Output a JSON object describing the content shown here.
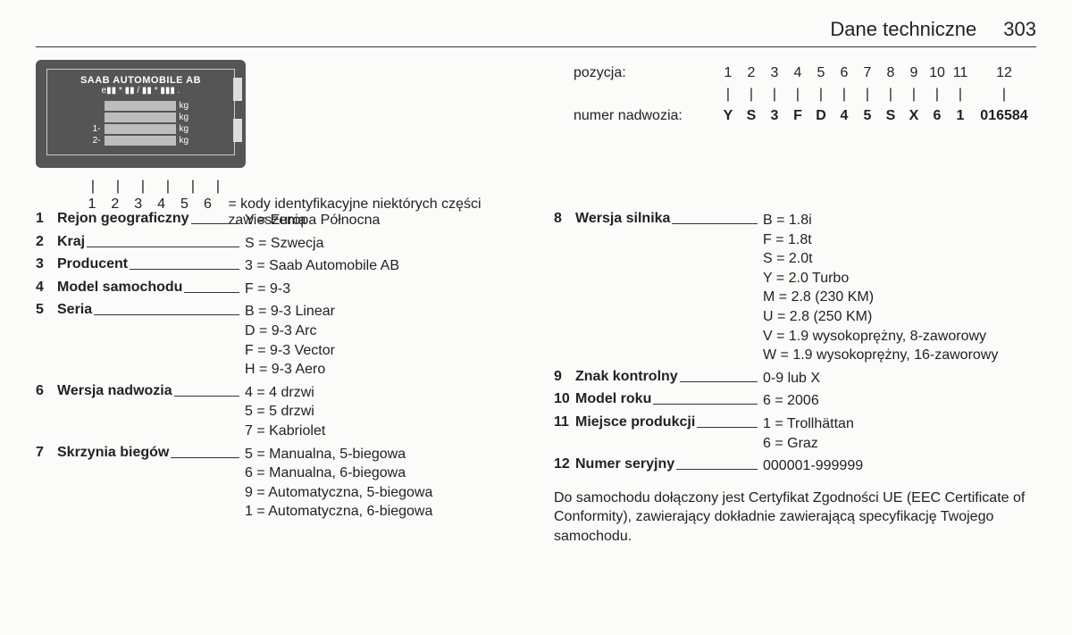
{
  "header": {
    "title": "Dane techniczne",
    "page": "303"
  },
  "plate": {
    "brand": "SAAB AUTOMOBILE AB",
    "sub": "e▮▮ * ▮▮ / ▮▮ * ▮▮▮ .",
    "rows": [
      {
        "lbl": "",
        "unit": "kg"
      },
      {
        "lbl": "",
        "unit": "kg"
      },
      {
        "lbl": "1-",
        "unit": "kg"
      },
      {
        "lbl": "2-",
        "unit": "kg"
      }
    ]
  },
  "vin": {
    "label_pos": "pozycja:",
    "label_num": "numer nadwozia:",
    "positions": [
      "1",
      "2",
      "3",
      "4",
      "5",
      "6",
      "7",
      "8",
      "9",
      "10",
      "11",
      "12"
    ],
    "ticks": [
      "|",
      "|",
      "|",
      "|",
      "|",
      "|",
      "|",
      "|",
      "|",
      "|",
      "|",
      "|"
    ],
    "chars": [
      "Y",
      "S",
      "3",
      "F",
      "D",
      "4",
      "5",
      "S",
      "X",
      "6",
      "1",
      "016584"
    ]
  },
  "susp": {
    "ticks": [
      "|",
      "|",
      "|",
      "|",
      "|",
      "|"
    ],
    "nums": [
      "1",
      "2",
      "3",
      "4",
      "5",
      "6"
    ],
    "caption": "= kody identyfikacyjne niektórych części zawieszenia"
  },
  "keys_left": [
    {
      "n": "1",
      "name": "Rejon geograficzny",
      "vals": [
        "Y = Europa Północna"
      ]
    },
    {
      "n": "2",
      "name": "Kraj",
      "vals": [
        "S = Szwecja"
      ]
    },
    {
      "n": "3",
      "name": "Producent",
      "vals": [
        "3 = Saab Automobile AB"
      ]
    },
    {
      "n": "4",
      "name": "Model samochodu",
      "vals": [
        "F = 9-3"
      ]
    },
    {
      "n": "5",
      "name": "Seria",
      "vals": [
        "B = 9-3 Linear",
        "D = 9-3 Arc",
        "F = 9-3 Vector",
        "H = 9-3 Aero"
      ]
    },
    {
      "n": "6",
      "name": "Wersja nadwozia",
      "vals": [
        "4 = 4 drzwi",
        "5 = 5 drzwi",
        "7 = Kabriolet"
      ]
    },
    {
      "n": "7",
      "name": "Skrzynia biegów",
      "vals": [
        "5 = Manualna, 5-biegowa",
        "6 = Manualna, 6-biegowa",
        "9 = Automatyczna, 5-biegowa",
        "1 = Automatyczna, 6-biegowa"
      ]
    }
  ],
  "keys_right": [
    {
      "n": "8",
      "name": "Wersja silnika",
      "vals": [
        "B = 1.8i",
        "F = 1.8t",
        "S = 2.0t",
        "Y = 2.0 Turbo",
        "M = 2.8 (230 KM)",
        "U = 2.8 (250 KM)",
        "V = 1.9 wysokoprężny, 8-zaworowy",
        "W = 1.9 wysokoprężny, 16-zaworowy"
      ]
    },
    {
      "n": "9",
      "name": "Znak kontrolny",
      "vals": [
        "0-9 lub X"
      ]
    },
    {
      "n": "10",
      "name": "Model roku",
      "vals": [
        "6 = 2006"
      ]
    },
    {
      "n": "11",
      "name": "Miejsce produkcji",
      "vals": [
        "1 = Trollhättan",
        "6 = Graz"
      ]
    },
    {
      "n": "12",
      "name": "Numer seryjny",
      "vals": [
        "000001-999999"
      ]
    }
  ],
  "footnote": "Do samochodu dołączony jest Certyfikat Zgodności UE (EEC Certificate of Conformity), zawierający dokładnie zawierającą specyfikację Twojego samochodu."
}
